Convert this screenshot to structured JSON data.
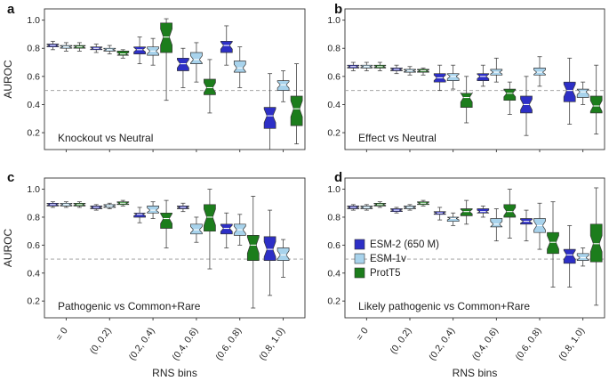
{
  "colors": {
    "ESM-2 (650 M)": "#2d2fc6",
    "ESM-1v": "#a8d3ec",
    "ProtT5": "#1c7d1c"
  },
  "legend": [
    "ESM-2 (650 M)",
    "ESM-1v",
    "ProtT5"
  ],
  "chart_data": [
    {
      "type": "box",
      "panel": "a",
      "annotation": "Knockout vs Neutral",
      "ylabel": "AUROC",
      "xlabel": "",
      "ylim": [
        0.08,
        1.08
      ],
      "yticks": [
        0.2,
        0.4,
        0.6,
        0.8,
        1.0
      ],
      "reference_line": 0.5,
      "categories": [
        "= 0",
        "(0, 0.2)",
        "(0.2, 0.4)",
        "(0.4, 0.6)",
        "(0.6, 0.8)",
        "(0.8, 1.0)"
      ],
      "series": [
        {
          "name": "ESM-2 (650 M)",
          "boxes": [
            [
              0.79,
              0.81,
              0.82,
              0.83,
              0.85
            ],
            [
              0.77,
              0.79,
              0.8,
              0.81,
              0.83
            ],
            [
              0.69,
              0.76,
              0.79,
              0.81,
              0.88
            ],
            [
              0.52,
              0.64,
              0.69,
              0.73,
              0.8
            ],
            [
              0.68,
              0.77,
              0.82,
              0.85,
              0.96
            ],
            [
              0.08,
              0.23,
              0.32,
              0.38,
              0.62
            ]
          ]
        },
        {
          "name": "ESM-1v",
          "boxes": [
            [
              0.78,
              0.8,
              0.81,
              0.82,
              0.84
            ],
            [
              0.76,
              0.78,
              0.79,
              0.8,
              0.82
            ],
            [
              0.68,
              0.75,
              0.78,
              0.81,
              0.87
            ],
            [
              0.56,
              0.69,
              0.72,
              0.77,
              0.84
            ],
            [
              0.52,
              0.63,
              0.66,
              0.71,
              0.81
            ],
            [
              0.42,
              0.5,
              0.54,
              0.57,
              0.64
            ]
          ]
        },
        {
          "name": "ProtT5",
          "boxes": [
            [
              0.78,
              0.8,
              0.81,
              0.82,
              0.84
            ],
            [
              0.73,
              0.75,
              0.76,
              0.78,
              0.79
            ],
            [
              0.43,
              0.77,
              0.88,
              0.98,
              1.01
            ],
            [
              0.34,
              0.47,
              0.52,
              0.58,
              0.72
            ],
            null,
            [
              0.12,
              0.25,
              0.37,
              0.46,
              0.69
            ]
          ]
        }
      ]
    },
    {
      "type": "box",
      "panel": "b",
      "annotation": "Effect vs Neutral",
      "ylabel": "",
      "xlabel": "",
      "ylim": [
        0.08,
        1.08
      ],
      "yticks": [
        0.2,
        0.4,
        0.6,
        0.8,
        1.0
      ],
      "reference_line": 0.5,
      "categories": [
        "= 0",
        "(0, 0.2)",
        "(0.2, 0.4)",
        "(0.4, 0.6)",
        "(0.6, 0.8)",
        "(0.8, 1.0)"
      ],
      "series": [
        {
          "name": "ESM-2 (650 M)",
          "boxes": [
            [
              0.64,
              0.66,
              0.67,
              0.68,
              0.7
            ],
            [
              0.62,
              0.64,
              0.65,
              0.66,
              0.68
            ],
            [
              0.5,
              0.56,
              0.59,
              0.62,
              0.68
            ],
            [
              0.53,
              0.57,
              0.6,
              0.62,
              0.68
            ],
            [
              0.18,
              0.34,
              0.4,
              0.46,
              0.6
            ],
            [
              0.26,
              0.42,
              0.5,
              0.56,
              0.73
            ]
          ]
        },
        {
          "name": "ESM-1v",
          "boxes": [
            [
              0.64,
              0.66,
              0.67,
              0.68,
              0.7
            ],
            [
              0.61,
              0.63,
              0.64,
              0.65,
              0.67
            ],
            [
              0.51,
              0.57,
              0.6,
              0.62,
              0.68
            ],
            [
              0.56,
              0.61,
              0.63,
              0.65,
              0.73
            ],
            [
              0.53,
              0.61,
              0.63,
              0.66,
              0.74
            ],
            [
              0.4,
              0.45,
              0.49,
              0.51,
              0.56
            ]
          ]
        },
        {
          "name": "ProtT5",
          "boxes": [
            [
              0.64,
              0.66,
              0.67,
              0.68,
              0.7
            ],
            [
              0.61,
              0.63,
              0.64,
              0.65,
              0.66
            ],
            [
              0.27,
              0.38,
              0.45,
              0.48,
              0.6
            ],
            [
              0.33,
              0.43,
              0.48,
              0.51,
              0.56
            ],
            null,
            [
              0.19,
              0.34,
              0.39,
              0.46,
              0.68
            ]
          ]
        }
      ]
    },
    {
      "type": "box",
      "panel": "c",
      "annotation": "Pathogenic vs Common+Rare",
      "ylabel": "AUROC",
      "xlabel": "RNS bins",
      "ylim": [
        0.08,
        1.08
      ],
      "yticks": [
        0.2,
        0.4,
        0.6,
        0.8,
        1.0
      ],
      "reference_line": 0.5,
      "categories": [
        "= 0",
        "(0, 0.2)",
        "(0.2, 0.4)",
        "(0.4, 0.6)",
        "(0.6, 0.8)",
        "(0.8, 1.0)"
      ],
      "series": [
        {
          "name": "ESM-2 (650 M)",
          "boxes": [
            [
              0.87,
              0.88,
              0.89,
              0.9,
              0.91
            ],
            [
              0.85,
              0.86,
              0.87,
              0.88,
              0.89
            ],
            [
              0.76,
              0.8,
              0.82,
              0.83,
              0.87
            ],
            [
              0.84,
              0.86,
              0.87,
              0.88,
              0.9
            ],
            [
              0.58,
              0.68,
              0.72,
              0.75,
              0.83
            ],
            [
              0.24,
              0.49,
              0.57,
              0.66,
              0.85
            ]
          ]
        },
        {
          "name": "ESM-1v",
          "boxes": [
            [
              0.87,
              0.88,
              0.89,
              0.9,
              0.91
            ],
            [
              0.86,
              0.87,
              0.88,
              0.89,
              0.9
            ],
            [
              0.79,
              0.83,
              0.85,
              0.88,
              0.91
            ],
            [
              0.62,
              0.68,
              0.71,
              0.75,
              0.8
            ],
            [
              0.6,
              0.67,
              0.71,
              0.75,
              0.82
            ],
            [
              0.37,
              0.49,
              0.53,
              0.58,
              0.64
            ]
          ]
        },
        {
          "name": "ProtT5",
          "boxes": [
            [
              0.87,
              0.88,
              0.89,
              0.9,
              0.91
            ],
            [
              0.88,
              0.89,
              0.9,
              0.91,
              0.92
            ],
            [
              0.58,
              0.72,
              0.79,
              0.83,
              0.92
            ],
            [
              0.43,
              0.7,
              0.8,
              0.89,
              1.0
            ],
            [
              0.15,
              0.49,
              0.6,
              0.67,
              0.95
            ],
            null
          ]
        }
      ]
    },
    {
      "type": "box",
      "panel": "d",
      "annotation": "Likely pathogenic vs Common+Rare",
      "ylabel": "",
      "xlabel": "RNS bins",
      "ylim": [
        0.08,
        1.08
      ],
      "yticks": [
        0.2,
        0.4,
        0.6,
        0.8,
        1.0
      ],
      "reference_line": 0.5,
      "categories": [
        "= 0",
        "(0, 0.2)",
        "(0.2, 0.4)",
        "(0.4, 0.6)",
        "(0.6, 0.8)",
        "(0.8, 1.0)"
      ],
      "series": [
        {
          "name": "ESM-2 (650 M)",
          "boxes": [
            [
              0.85,
              0.86,
              0.87,
              0.88,
              0.89
            ],
            [
              0.83,
              0.84,
              0.85,
              0.86,
              0.87
            ],
            [
              0.78,
              0.82,
              0.83,
              0.84,
              0.87
            ],
            [
              0.8,
              0.83,
              0.84,
              0.86,
              0.88
            ],
            [
              0.63,
              0.75,
              0.77,
              0.79,
              0.85
            ],
            [
              0.3,
              0.47,
              0.53,
              0.57,
              0.74
            ]
          ]
        },
        {
          "name": "ESM-1v",
          "boxes": [
            [
              0.85,
              0.86,
              0.87,
              0.88,
              0.89
            ],
            [
              0.85,
              0.86,
              0.87,
              0.88,
              0.89
            ],
            [
              0.74,
              0.77,
              0.79,
              0.8,
              0.83
            ],
            [
              0.63,
              0.73,
              0.75,
              0.79,
              0.86
            ],
            [
              0.57,
              0.69,
              0.74,
              0.79,
              0.9
            ],
            [
              0.45,
              0.49,
              0.51,
              0.54,
              0.58
            ]
          ]
        },
        {
          "name": "ProtT5",
          "boxes": [
            [
              0.87,
              0.88,
              0.89,
              0.9,
              0.91
            ],
            [
              0.88,
              0.89,
              0.9,
              0.91,
              0.92
            ],
            [
              0.75,
              0.81,
              0.84,
              0.86,
              0.92
            ],
            [
              0.65,
              0.8,
              0.84,
              0.89,
              1.0
            ],
            [
              0.3,
              0.54,
              0.62,
              0.69,
              0.91
            ],
            [
              0.17,
              0.48,
              0.61,
              0.75,
              1.01
            ]
          ]
        }
      ]
    }
  ]
}
